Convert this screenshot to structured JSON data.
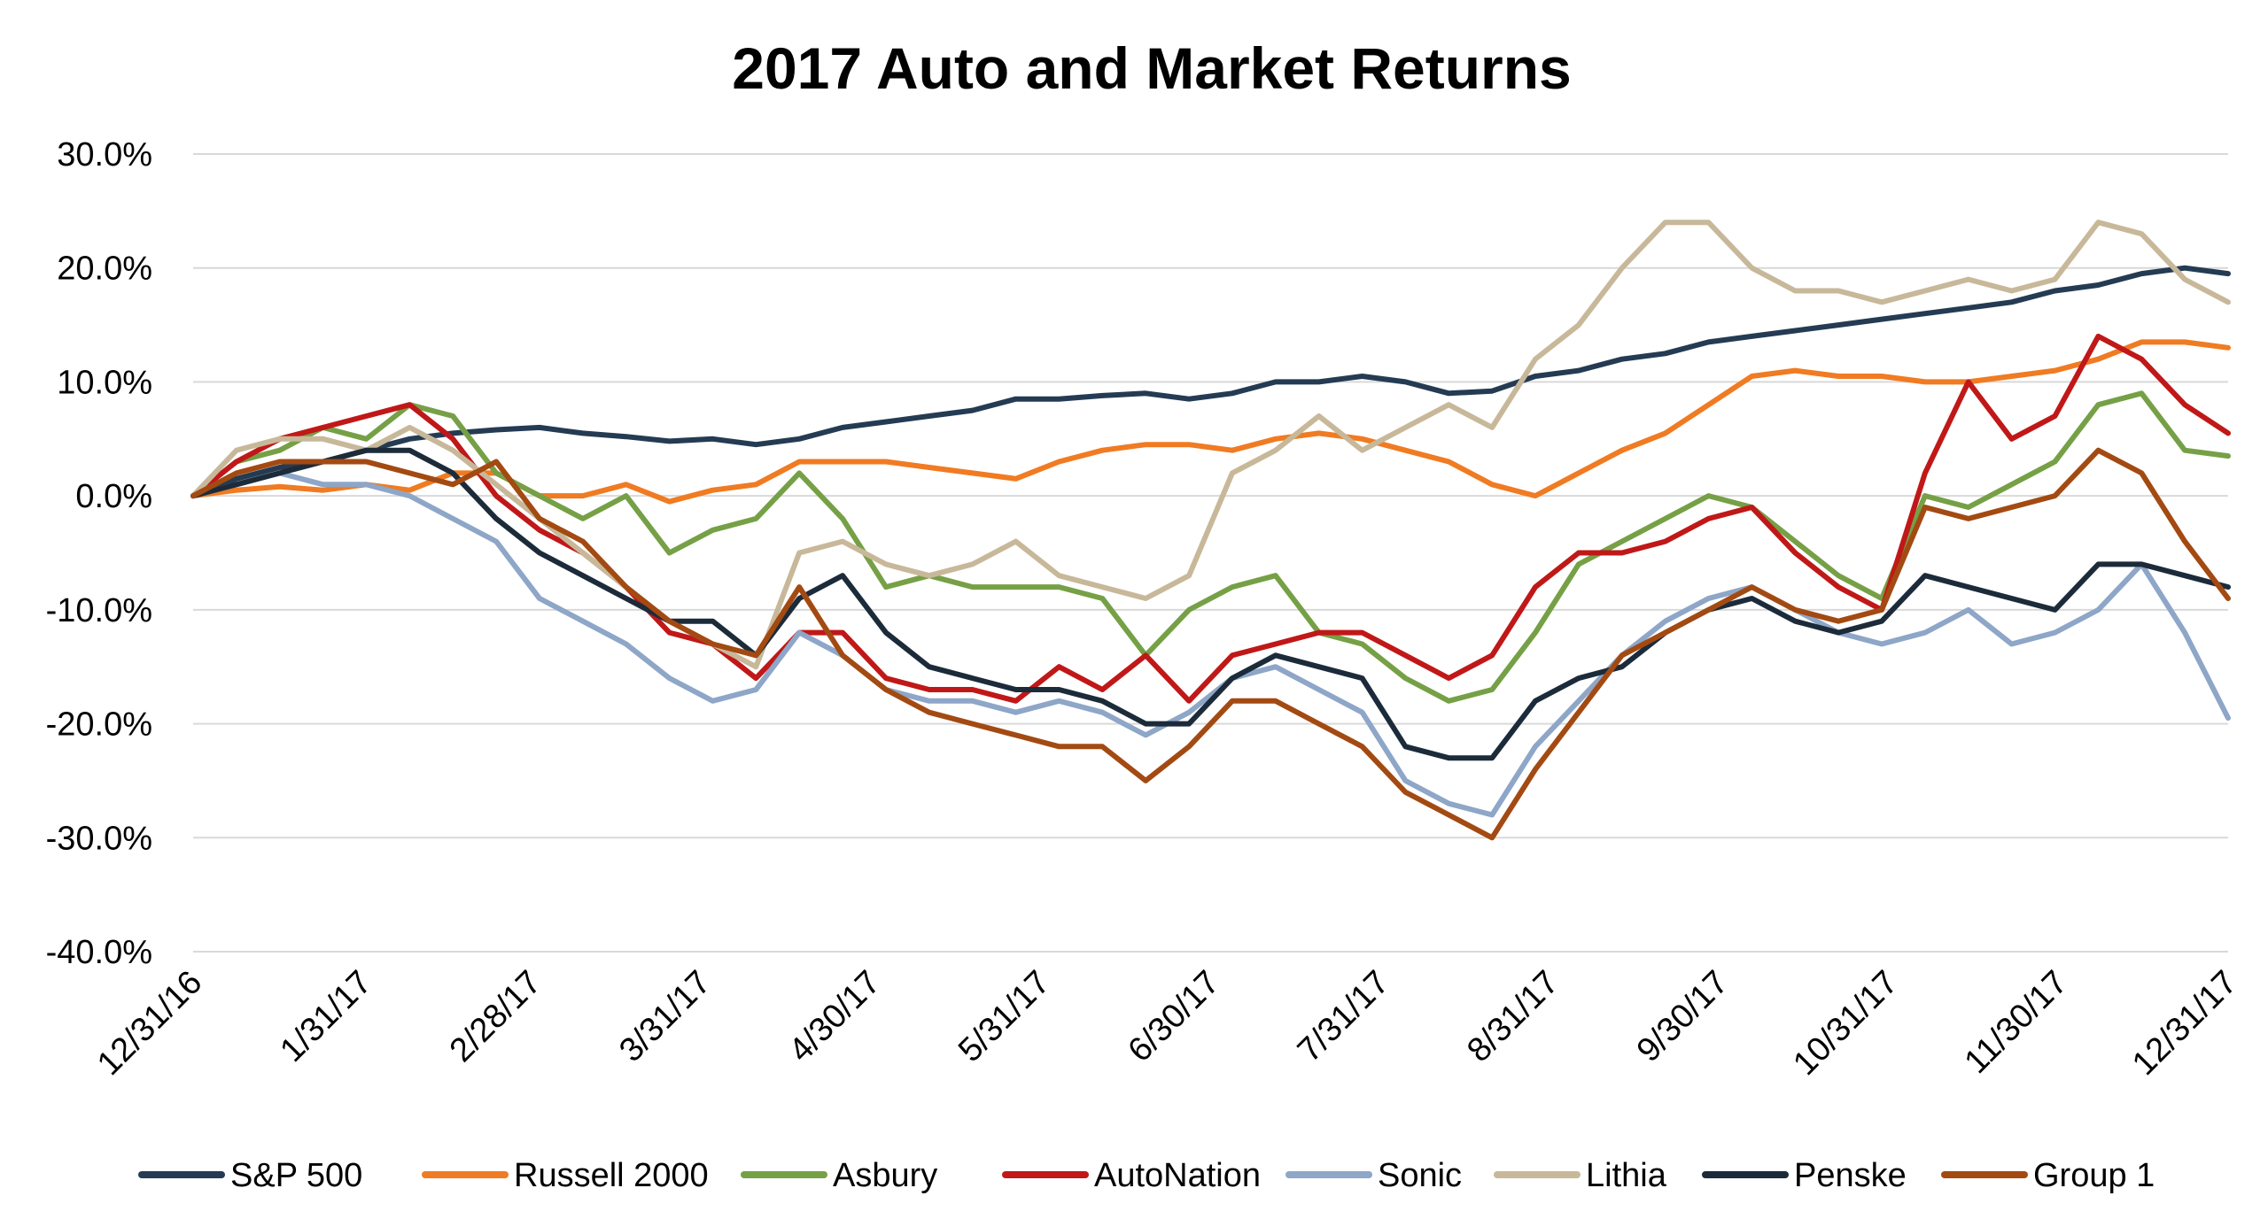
{
  "chart_data": {
    "type": "line",
    "title": "2017 Auto and Market Returns",
    "xlabel": "",
    "ylabel": "",
    "x_tick_labels": [
      "12/31/16",
      "1/31/17",
      "2/28/17",
      "3/31/17",
      "4/30/17",
      "5/31/17",
      "6/30/17",
      "7/31/17",
      "8/31/17",
      "9/30/17",
      "10/31/17",
      "11/30/17",
      "12/31/17"
    ],
    "y_tick_labels": [
      "30.0%",
      "20.0%",
      "10.0%",
      "0.0%",
      "-10.0%",
      "-20.0%",
      "-30.0%",
      "-40.0%"
    ],
    "ylim": [
      -40,
      30
    ],
    "grid": true,
    "legend_position": "bottom",
    "series": [
      {
        "name": "S&P 500",
        "color": "#243b53",
        "values": [
          0,
          1.5,
          2.5,
          3,
          4,
          5,
          5.5,
          5.8,
          6,
          5.5,
          5.2,
          4.8,
          5,
          4.5,
          5,
          6,
          6.5,
          7,
          7.5,
          8.5,
          8.5,
          8.8,
          9,
          8.5,
          9,
          10,
          10,
          10.5,
          10,
          9,
          9.2,
          10.5,
          11,
          12,
          12.5,
          13.5,
          14,
          14.5,
          15,
          15.5,
          16,
          16.5,
          17,
          18,
          18.5,
          19.5,
          20,
          19.5
        ]
      },
      {
        "name": "Russell 2000",
        "color": "#f07b22",
        "values": [
          0,
          0.5,
          0.8,
          0.5,
          1,
          0.5,
          2,
          2,
          0,
          0,
          1,
          -0.5,
          0.5,
          1,
          3,
          3,
          3,
          2.5,
          2,
          1.5,
          3,
          4,
          4.5,
          4.5,
          4,
          5,
          5.5,
          5,
          4,
          3,
          1,
          0,
          2,
          4,
          5.5,
          8,
          10.5,
          11,
          10.5,
          10.5,
          10,
          10,
          10.5,
          11,
          12,
          13.5,
          13.5,
          13
        ]
      },
      {
        "name": "Asbury",
        "color": "#76a046",
        "values": [
          0,
          3,
          4,
          6,
          5,
          8,
          7,
          2,
          0,
          -2,
          0,
          -5,
          -3,
          -2,
          2,
          -2,
          -8,
          -7,
          -8,
          -8,
          -8,
          -9,
          -14,
          -10,
          -8,
          -7,
          -12,
          -13,
          -16,
          -18,
          -17,
          -12,
          -6,
          -4,
          -2,
          0,
          -1,
          -4,
          -7,
          -9,
          0,
          -1,
          1,
          3,
          8,
          9,
          4,
          3.5
        ]
      },
      {
        "name": "AutoNation",
        "color": "#c01818",
        "values": [
          0,
          3,
          5,
          6,
          7,
          8,
          5,
          0,
          -3,
          -5,
          -8,
          -12,
          -13,
          -16,
          -12,
          -12,
          -16,
          -17,
          -17,
          -18,
          -15,
          -17,
          -14,
          -18,
          -14,
          -13,
          -12,
          -12,
          -14,
          -16,
          -14,
          -8,
          -5,
          -5,
          -4,
          -2,
          -1,
          -5,
          -8,
          -10,
          2,
          10,
          5,
          7,
          14,
          12,
          8,
          5.5
        ]
      },
      {
        "name": "Sonic",
        "color": "#8ea6c7",
        "values": [
          0,
          1,
          2,
          1,
          1,
          0,
          -2,
          -4,
          -9,
          -11,
          -13,
          -16,
          -18,
          -17,
          -12,
          -14,
          -17,
          -18,
          -18,
          -19,
          -18,
          -19,
          -21,
          -19,
          -16,
          -15,
          -17,
          -19,
          -25,
          -27,
          -28,
          -22,
          -18,
          -14,
          -11,
          -9,
          -8,
          -10,
          -12,
          -13,
          -12,
          -10,
          -13,
          -12,
          -10,
          -6,
          -12,
          -19.5
        ]
      },
      {
        "name": "Lithia",
        "color": "#c8b89a",
        "values": [
          0,
          4,
          5,
          5,
          4,
          6,
          4,
          1,
          -2,
          -5,
          -8,
          -11,
          -13,
          -15,
          -5,
          -4,
          -6,
          -7,
          -6,
          -4,
          -7,
          -8,
          -9,
          -7,
          2,
          4,
          7,
          4,
          6,
          8,
          6,
          12,
          15,
          20,
          24,
          24,
          20,
          18,
          18,
          17,
          18,
          19,
          18,
          19,
          24,
          23,
          19,
          17
        ]
      },
      {
        "name": "Penske",
        "color": "#1c2b3a",
        "values": [
          0,
          1,
          2,
          3,
          4,
          4,
          2,
          -2,
          -5,
          -7,
          -9,
          -11,
          -11,
          -14,
          -9,
          -7,
          -12,
          -15,
          -16,
          -17,
          -17,
          -18,
          -20,
          -20,
          -16,
          -14,
          -15,
          -16,
          -22,
          -23,
          -23,
          -18,
          -16,
          -15,
          -12,
          -10,
          -9,
          -11,
          -12,
          -11,
          -7,
          -8,
          -9,
          -10,
          -6,
          -6,
          -7,
          -8
        ]
      },
      {
        "name": "Group 1",
        "color": "#a34a12",
        "values": [
          0,
          2,
          3,
          3,
          3,
          2,
          1,
          3,
          -2,
          -4,
          -8,
          -11,
          -13,
          -14,
          -8,
          -14,
          -17,
          -19,
          -20,
          -21,
          -22,
          -22,
          -25,
          -22,
          -18,
          -18,
          -20,
          -22,
          -26,
          -28,
          -30,
          -24,
          -19,
          -14,
          -12,
          -10,
          -8,
          -10,
          -11,
          -10,
          -1,
          -2,
          -1,
          0,
          4,
          2,
          -4,
          -9
        ]
      }
    ]
  }
}
